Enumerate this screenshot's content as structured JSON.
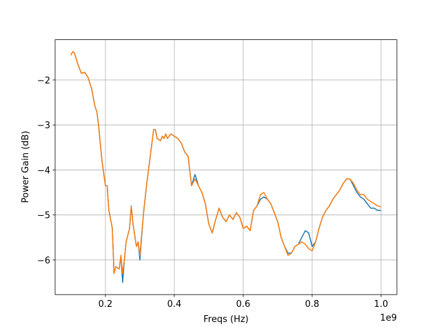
{
  "chart_data": {
    "type": "line",
    "xlabel": "Freqs (Hz)",
    "ylabel": "Power Gain (dB)",
    "x_offset_label": "1e9",
    "x": [
      0.1,
      0.105,
      0.11,
      0.12,
      0.13,
      0.14,
      0.15,
      0.16,
      0.17,
      0.175,
      0.18,
      0.19,
      0.2,
      0.205,
      0.21,
      0.22,
      0.225,
      0.23,
      0.24,
      0.245,
      0.25,
      0.255,
      0.26,
      0.27,
      0.275,
      0.28,
      0.29,
      0.295,
      0.3,
      0.31,
      0.32,
      0.33,
      0.34,
      0.345,
      0.35,
      0.36,
      0.365,
      0.37,
      0.375,
      0.38,
      0.39,
      0.4,
      0.41,
      0.42,
      0.43,
      0.44,
      0.45,
      0.46,
      0.47,
      0.48,
      0.49,
      0.5,
      0.51,
      0.52,
      0.53,
      0.54,
      0.55,
      0.56,
      0.57,
      0.58,
      0.59,
      0.6,
      0.61,
      0.62,
      0.63,
      0.64,
      0.65,
      0.66,
      0.67,
      0.68,
      0.69,
      0.7,
      0.71,
      0.72,
      0.73,
      0.74,
      0.75,
      0.76,
      0.77,
      0.78,
      0.79,
      0.8,
      0.81,
      0.82,
      0.83,
      0.84,
      0.85,
      0.86,
      0.87,
      0.88,
      0.89,
      0.9,
      0.91,
      0.92,
      0.93,
      0.94,
      0.95,
      0.96,
      0.97,
      0.98,
      0.99,
      1.0
    ],
    "series": [
      {
        "color": "#1f77b4",
        "values": [
          -1.45,
          -1.37,
          -1.4,
          -1.65,
          -1.85,
          -1.83,
          -1.95,
          -2.2,
          -2.6,
          -2.7,
          -3.0,
          -3.8,
          -4.35,
          -4.35,
          -4.9,
          -5.3,
          -6.3,
          -6.15,
          -6.2,
          -5.9,
          -6.5,
          -6.0,
          -5.6,
          -5.3,
          -4.8,
          -5.2,
          -5.7,
          -5.6,
          -6.0,
          -5.0,
          -4.3,
          -3.7,
          -3.1,
          -3.1,
          -3.3,
          -3.35,
          -3.25,
          -3.3,
          -3.2,
          -3.3,
          -3.2,
          -3.25,
          -3.3,
          -3.4,
          -3.6,
          -3.7,
          -4.35,
          -4.1,
          -4.35,
          -4.5,
          -4.75,
          -5.2,
          -5.4,
          -5.1,
          -4.85,
          -5.05,
          -5.15,
          -5.0,
          -5.1,
          -4.95,
          -5.05,
          -5.3,
          -5.25,
          -5.35,
          -4.9,
          -4.8,
          -4.65,
          -4.6,
          -4.65,
          -4.75,
          -4.95,
          -5.15,
          -5.5,
          -5.7,
          -5.85,
          -5.85,
          -5.7,
          -5.65,
          -5.5,
          -5.35,
          -5.4,
          -5.7,
          -5.6,
          -5.3,
          -5.05,
          -4.9,
          -4.8,
          -4.65,
          -4.55,
          -4.45,
          -4.3,
          -4.2,
          -4.2,
          -4.35,
          -4.5,
          -4.6,
          -4.65,
          -4.75,
          -4.85,
          -4.85,
          -4.9,
          -4.9
        ]
      },
      {
        "color": "#ff7f0e",
        "values": [
          -1.45,
          -1.37,
          -1.4,
          -1.65,
          -1.85,
          -1.83,
          -1.95,
          -2.2,
          -2.6,
          -2.7,
          -3.0,
          -3.8,
          -4.35,
          -4.35,
          -4.9,
          -5.3,
          -6.3,
          -6.15,
          -6.2,
          -5.9,
          -6.3,
          -6.0,
          -5.6,
          -5.3,
          -4.8,
          -5.2,
          -5.7,
          -5.6,
          -5.9,
          -5.0,
          -4.3,
          -3.7,
          -3.1,
          -3.1,
          -3.3,
          -3.35,
          -3.25,
          -3.3,
          -3.2,
          -3.3,
          -3.2,
          -3.25,
          -3.3,
          -3.4,
          -3.6,
          -3.7,
          -4.35,
          -4.2,
          -4.35,
          -4.5,
          -4.75,
          -5.2,
          -5.4,
          -5.1,
          -4.85,
          -5.05,
          -5.15,
          -5.0,
          -5.1,
          -4.95,
          -5.05,
          -5.3,
          -5.25,
          -5.35,
          -4.9,
          -4.8,
          -4.55,
          -4.5,
          -4.65,
          -4.75,
          -4.95,
          -5.15,
          -5.5,
          -5.7,
          -5.9,
          -5.85,
          -5.7,
          -5.65,
          -5.6,
          -5.65,
          -5.75,
          -5.8,
          -5.6,
          -5.3,
          -5.05,
          -4.9,
          -4.8,
          -4.65,
          -4.55,
          -4.45,
          -4.3,
          -4.2,
          -4.2,
          -4.3,
          -4.45,
          -4.55,
          -4.55,
          -4.65,
          -4.7,
          -4.75,
          -4.8,
          -4.82
        ]
      }
    ],
    "xlim": [
      0.054,
      1.046
    ],
    "ylim": [
      -6.77,
      -1.106
    ],
    "xticks": [
      0.2,
      0.4,
      0.6,
      0.8,
      {
        "value": 1,
        "label": "1.0"
      }
    ],
    "yticks": [
      {
        "value": -6,
        "label": "−6"
      },
      {
        "value": -5,
        "label": "−5"
      },
      {
        "value": -4,
        "label": "−4"
      },
      {
        "value": -3,
        "label": "−3"
      },
      {
        "value": -2,
        "label": "−2"
      }
    ],
    "grid": true
  }
}
